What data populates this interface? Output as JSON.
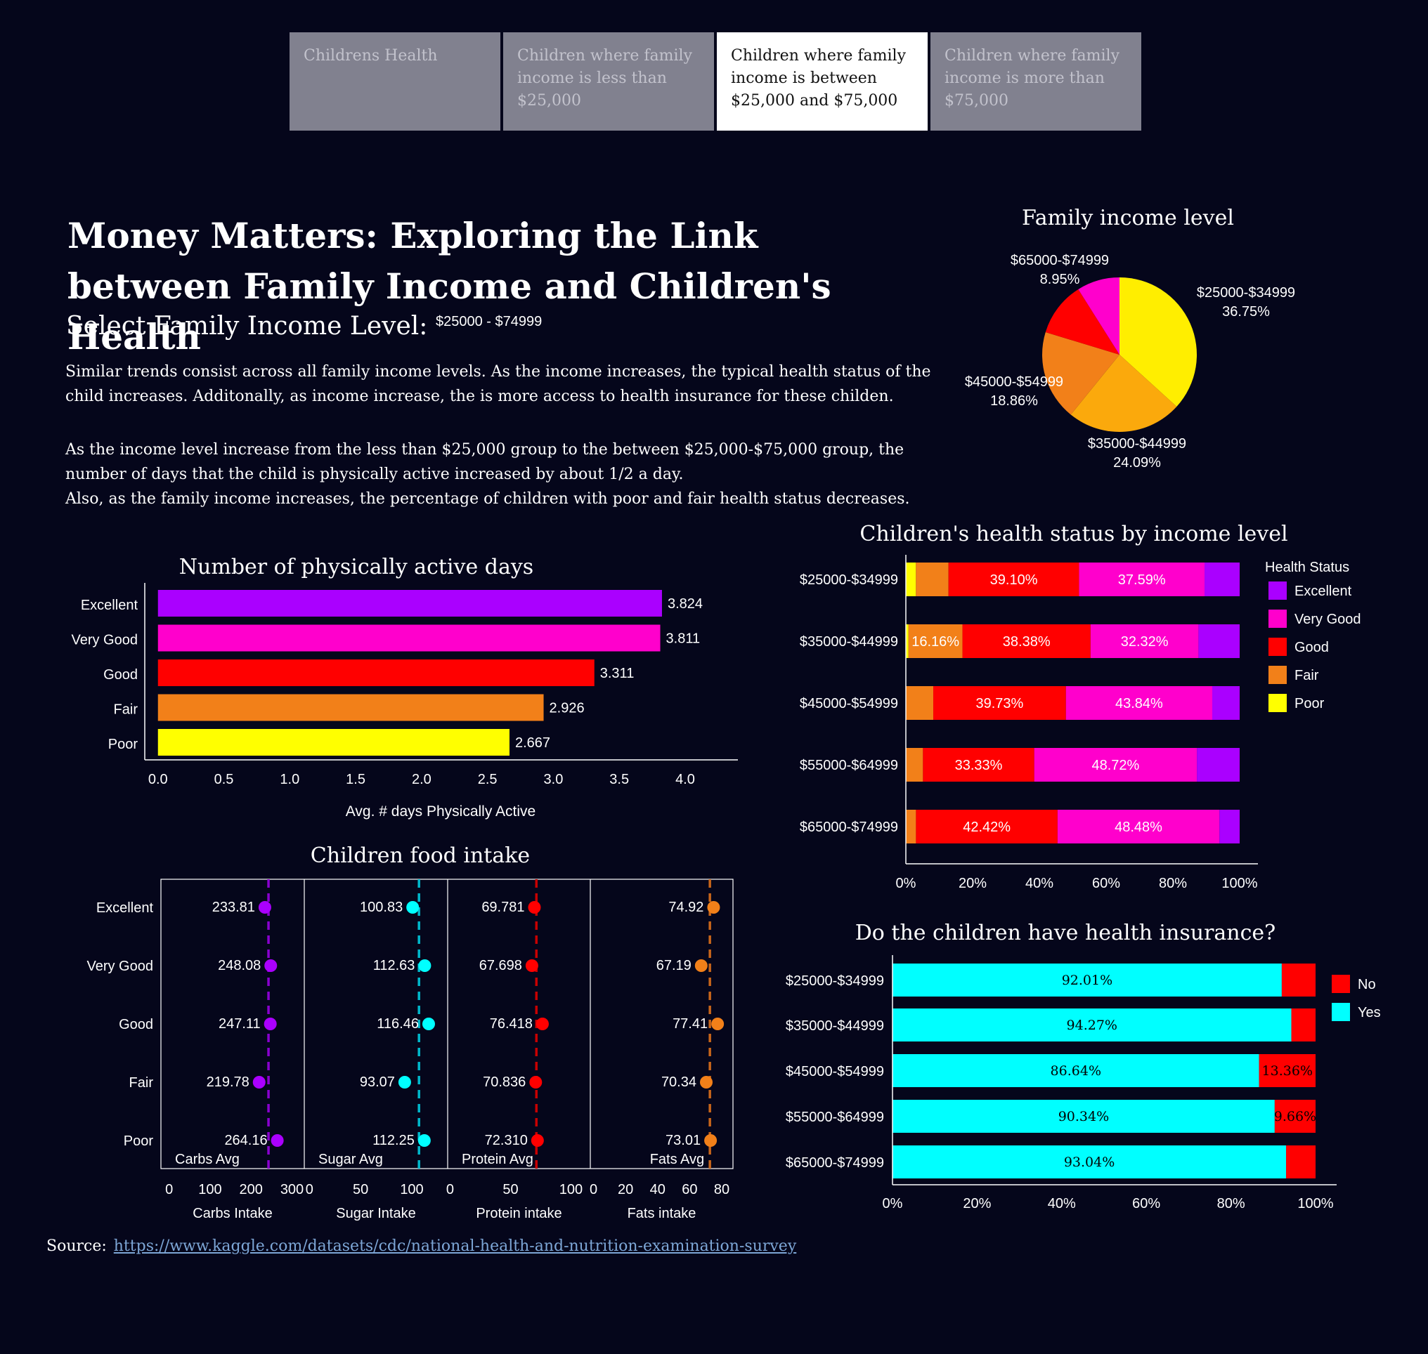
{
  "tabs": [
    {
      "label": "Childrens Health",
      "active": false
    },
    {
      "label": "Children where family income is less than $25,000",
      "active": false
    },
    {
      "label": "Children where family income is between $25,000 and $75,000",
      "active": true
    },
    {
      "label": "Children where family income is more than $75,000",
      "active": false
    }
  ],
  "header": {
    "title": "Money Matters: Exploring the Link between Family Income and Children's Health",
    "select_label": "Select Family Income Level:",
    "select_value": "$25000 - $74999"
  },
  "paragraphs": [
    "Similar trends consist across all family income levels. As the income increases, the typical health status of the child increases. Additonally, as income increase, the is more access to health insurance for these childen.",
    "As the income level increase from the less than $25,000 group to the between $25,000-$75,000 group, the number of days that the child is physically active increased by about 1/2 a day.",
    "Also, as the family income increases, the percentage of children with poor and fair health status decreases."
  ],
  "source": {
    "label": "Source:",
    "link": "https://www.kaggle.com/datasets/cdc/national-health-and-nutrition-examination-survey"
  },
  "colors": {
    "excellent": "#aa00ff",
    "very_good": "#ff00cc",
    "good": "#ff0000",
    "fair": "#f28019",
    "poor": "#ffff00",
    "yes": "#00ffff",
    "no": "#ff0000"
  },
  "chart_data": [
    {
      "id": "pie",
      "type": "pie",
      "title": "Family income level",
      "slices": [
        {
          "label": "$25000-$34999",
          "value": 36.75,
          "pct_label": "36.75%",
          "color": "#ffee00"
        },
        {
          "label": "$35000-$44999",
          "value": 24.09,
          "pct_label": "24.09%",
          "color": "#fba90c"
        },
        {
          "label": "$45000-$54999",
          "value": 18.86,
          "pct_label": "18.86%",
          "color": "#f28019"
        },
        {
          "label": "$55000-$64999",
          "value": 11.35,
          "pct_label": "",
          "color": "#ff0000"
        },
        {
          "label": "$65000-$74999",
          "value": 8.95,
          "pct_label": "8.95%",
          "color": "#ff00cc"
        }
      ],
      "visible_labels": [
        "$25000-$34999",
        "$35000-$44999",
        "$45000-$54999",
        "$65000-$74999"
      ]
    },
    {
      "id": "active",
      "type": "bar",
      "orientation": "horizontal",
      "title": "Number of physically active days",
      "xlabel": "Avg. # days Physically Active",
      "categories": [
        "Excellent",
        "Very Good",
        "Good",
        "Fair",
        "Poor"
      ],
      "values": [
        3.824,
        3.811,
        3.311,
        2.926,
        2.667
      ],
      "value_labels": [
        "3.824",
        "3.811",
        "3.311",
        "2.926",
        "2.667"
      ],
      "colors": [
        "#aa00ff",
        "#ff00cc",
        "#ff0000",
        "#f28019",
        "#ffff00"
      ],
      "xlim": [
        -0.1,
        4.4
      ],
      "xticks": [
        0,
        0.5,
        1,
        1.5,
        2,
        2.5,
        3,
        3.5,
        4
      ],
      "xtick_labels": [
        "0.0",
        "0.5",
        "1.0",
        "1.5",
        "2.0",
        "2.5",
        "3.0",
        "3.5",
        "4.0"
      ]
    },
    {
      "id": "food",
      "type": "scatter",
      "title": "Children food intake",
      "categories": [
        "Excellent",
        "Very Good",
        "Good",
        "Fair",
        "Poor"
      ],
      "panels": [
        {
          "xlabel": "Carbs Intake",
          "avg_label": "Carbs Avg",
          "color": "#aa00ff",
          "line_color": "#8a00d0",
          "xlim": [
            -20,
            330
          ],
          "xticks": [
            0,
            100,
            200,
            300
          ],
          "avg": 242.6,
          "values": [
            233.81,
            248.08,
            247.11,
            219.78,
            264.16
          ],
          "value_labels": [
            "233.81",
            "248.08",
            "247.11",
            "219.78",
            "264.16"
          ]
        },
        {
          "xlabel": "Sugar Intake",
          "avg_label": "Sugar Avg",
          "color": "#00ffff",
          "line_color": "#00b8cc",
          "xlim": [
            -5,
            135
          ],
          "xticks": [
            0,
            50,
            100
          ],
          "avg": 107.0,
          "values": [
            100.83,
            112.63,
            116.46,
            93.07,
            112.25
          ],
          "value_labels": [
            "100.83",
            "112.63",
            "116.46",
            "93.07",
            "112.25"
          ]
        },
        {
          "xlabel": "Protein intake",
          "avg_label": "Protein Avg",
          "color": "#ff0000",
          "line_color": "#c80000",
          "xlim": [
            -2,
            116
          ],
          "xticks": [
            0,
            50,
            100
          ],
          "avg": 71.4,
          "values": [
            69.781,
            67.698,
            76.418,
            70.836,
            72.31
          ],
          "value_labels": [
            "69.781",
            "67.698",
            "76.418",
            "70.836",
            "72.310"
          ]
        },
        {
          "xlabel": "Fats intake",
          "avg_label": "Fats Avg",
          "color": "#f28019",
          "line_color": "#c8661a",
          "xlim": [
            -2,
            87
          ],
          "xticks": [
            0,
            20,
            40,
            60,
            80
          ],
          "avg": 72.6,
          "values": [
            74.92,
            67.19,
            77.41,
            70.34,
            73.01
          ],
          "value_labels": [
            "74.92",
            "67.19",
            "77.41",
            "70.34",
            "73.01"
          ]
        }
      ]
    },
    {
      "id": "status",
      "type": "bar",
      "orientation": "horizontal",
      "stacked": "percent",
      "title": "Children's health status by income level",
      "legend_title": "Health Status",
      "legend_position": "right",
      "categories": [
        "$25000-$34999",
        "$35000-$44999",
        "$45000-$54999",
        "$55000-$64999",
        "$65000-$74999"
      ],
      "series": [
        {
          "name": "Poor",
          "color": "#ffff00",
          "values": [
            3.01,
            0.8,
            0,
            0,
            0
          ],
          "labels": [
            "",
            "",
            "",
            "",
            ""
          ]
        },
        {
          "name": "Fair",
          "color": "#f28019",
          "values": [
            9.77,
            16.16,
            8.22,
            5.13,
            3.03
          ],
          "labels": [
            "",
            "16.16%",
            "",
            "",
            ""
          ]
        },
        {
          "name": "Good",
          "color": "#ff0000",
          "values": [
            39.1,
            38.38,
            39.73,
            33.33,
            42.42
          ],
          "labels": [
            "39.10%",
            "38.38%",
            "39.73%",
            "33.33%",
            "42.42%"
          ]
        },
        {
          "name": "Very Good",
          "color": "#ff00cc",
          "values": [
            37.59,
            32.32,
            43.84,
            48.72,
            48.48
          ],
          "labels": [
            "37.59%",
            "32.32%",
            "43.84%",
            "48.72%",
            "48.48%"
          ]
        },
        {
          "name": "Excellent",
          "color": "#aa00ff",
          "values": [
            10.53,
            12.34,
            8.21,
            12.82,
            6.07
          ],
          "labels": [
            "",
            "",
            "",
            "",
            ""
          ]
        }
      ],
      "legend_order": [
        "Excellent",
        "Very Good",
        "Good",
        "Fair",
        "Poor"
      ],
      "xticks": [
        0,
        20,
        40,
        60,
        80,
        100
      ],
      "xtick_labels": [
        "0%",
        "20%",
        "40%",
        "60%",
        "80%",
        "100%"
      ]
    },
    {
      "id": "insurance",
      "type": "bar",
      "orientation": "horizontal",
      "stacked": "percent",
      "title": "Do the children have health insurance?",
      "legend_position": "right",
      "categories": [
        "$25000-$34999",
        "$35000-$44999",
        "$45000-$54999",
        "$55000-$64999",
        "$65000-$74999"
      ],
      "series": [
        {
          "name": "Yes",
          "color": "#00ffff",
          "values": [
            92.01,
            94.27,
            86.64,
            90.34,
            93.04
          ],
          "labels": [
            "92.01%",
            "94.27%",
            "86.64%",
            "90.34%",
            "93.04%"
          ]
        },
        {
          "name": "No",
          "color": "#ff0000",
          "values": [
            7.99,
            5.73,
            13.36,
            9.66,
            6.96
          ],
          "labels": [
            "",
            "",
            "13.36%",
            "9.66%",
            ""
          ]
        }
      ],
      "legend_order": [
        "No",
        "Yes"
      ],
      "xticks": [
        0,
        20,
        40,
        60,
        80,
        100
      ],
      "xtick_labels": [
        "0%",
        "20%",
        "40%",
        "60%",
        "80%",
        "100%"
      ]
    }
  ]
}
